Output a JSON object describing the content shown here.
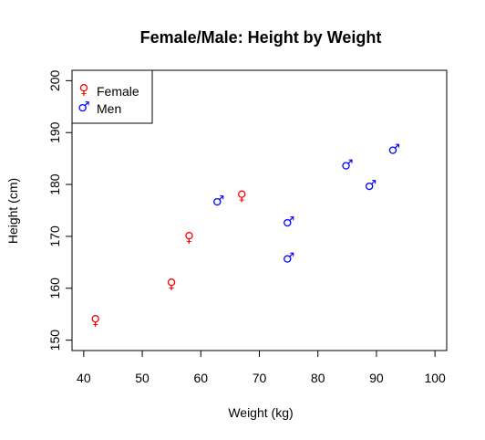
{
  "chart_data": {
    "type": "scatter",
    "title": "Female/Male: Height by Weight",
    "xlabel": "Weight (kg)",
    "ylabel": "Height (cm)",
    "xlim": [
      38,
      102
    ],
    "ylim": [
      148,
      202
    ],
    "xticks": [
      40,
      50,
      60,
      70,
      80,
      90,
      100
    ],
    "yticks": [
      150,
      160,
      170,
      180,
      190,
      200
    ],
    "grid": false,
    "legend_position": "top-left",
    "series": [
      {
        "name": "Female",
        "symbol": "♀",
        "color": "#ff0000",
        "points": [
          {
            "x": 42,
            "y": 154
          },
          {
            "x": 55,
            "y": 161
          },
          {
            "x": 58,
            "y": 170
          },
          {
            "x": 67,
            "y": 178
          }
        ]
      },
      {
        "name": "Men",
        "symbol": "♂",
        "color": "#0000ff",
        "points": [
          {
            "x": 63,
            "y": 177
          },
          {
            "x": 75,
            "y": 173
          },
          {
            "x": 75,
            "y": 166
          },
          {
            "x": 85,
            "y": 184
          },
          {
            "x": 89,
            "y": 180
          },
          {
            "x": 93,
            "y": 187
          }
        ]
      }
    ]
  }
}
